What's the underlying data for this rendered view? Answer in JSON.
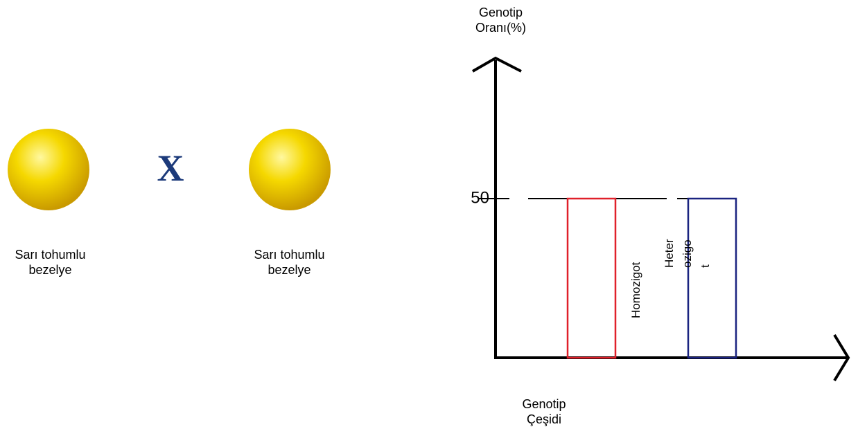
{
  "cross": {
    "left_label": "Sarı tohumlu bezelye",
    "symbol": "X",
    "right_label": "Sarı tohumlu bezelye"
  },
  "chart_data": {
    "type": "bar",
    "y_label": "Genotip Oranı(%)",
    "x_label": "Genotip Çeşidi",
    "categories": [
      "Homozigot",
      "Heterozigot"
    ],
    "values": [
      50,
      50
    ],
    "colors": [
      "#e0202a",
      "#1a2380"
    ],
    "ylim": [
      0,
      100
    ],
    "yticks": [
      50
    ],
    "grid": true
  }
}
